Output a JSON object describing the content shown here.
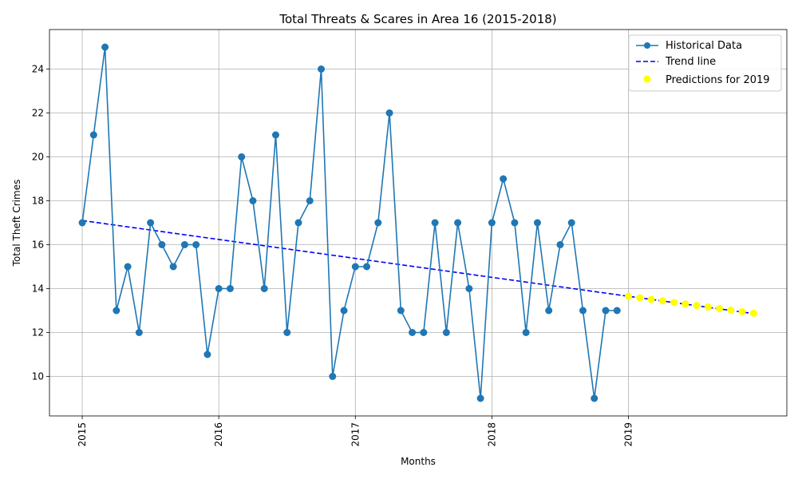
{
  "chart_data": {
    "type": "line",
    "title": "Total Threats & Scares in Area 16 (2015-2018)",
    "xlabel": "Months",
    "ylabel": "Total Theft Crimes",
    "xlim": [
      2014.76,
      2020.16
    ],
    "ylim": [
      8.2,
      25.8
    ],
    "x_ticks": [
      2015,
      2016,
      2017,
      2018,
      2019
    ],
    "y_ticks": [
      10,
      12,
      14,
      16,
      18,
      20,
      22,
      24
    ],
    "grid": true,
    "legend_position": "top-right",
    "colors": {
      "historical": "#1f77b4",
      "trend": "#0000ff",
      "prediction": "#ffff00"
    },
    "series": [
      {
        "name": "Historical Data",
        "kind": "line-marker",
        "start": 2015,
        "step_months": 1,
        "values": [
          17,
          21,
          25,
          13,
          15,
          12,
          17,
          16,
          15,
          16,
          16,
          11,
          14,
          14,
          20,
          18,
          14,
          21,
          12,
          17,
          18,
          24,
          10,
          13,
          15,
          15,
          17,
          22,
          13,
          12,
          12,
          17,
          12,
          17,
          14,
          9,
          17,
          19,
          17,
          12,
          17,
          13,
          16,
          17,
          13,
          9,
          13,
          13
        ]
      },
      {
        "name": "Trend line",
        "kind": "dashed",
        "x": [
          2015,
          2019.917
        ],
        "y": [
          17.1,
          12.86
        ]
      },
      {
        "name": "Predictions for 2019",
        "kind": "scatter",
        "start": 2019,
        "step_months": 1,
        "values": [
          13.65,
          13.58,
          13.51,
          13.44,
          13.37,
          13.3,
          13.23,
          13.16,
          13.09,
          13.02,
          12.95,
          12.88
        ]
      }
    ]
  }
}
